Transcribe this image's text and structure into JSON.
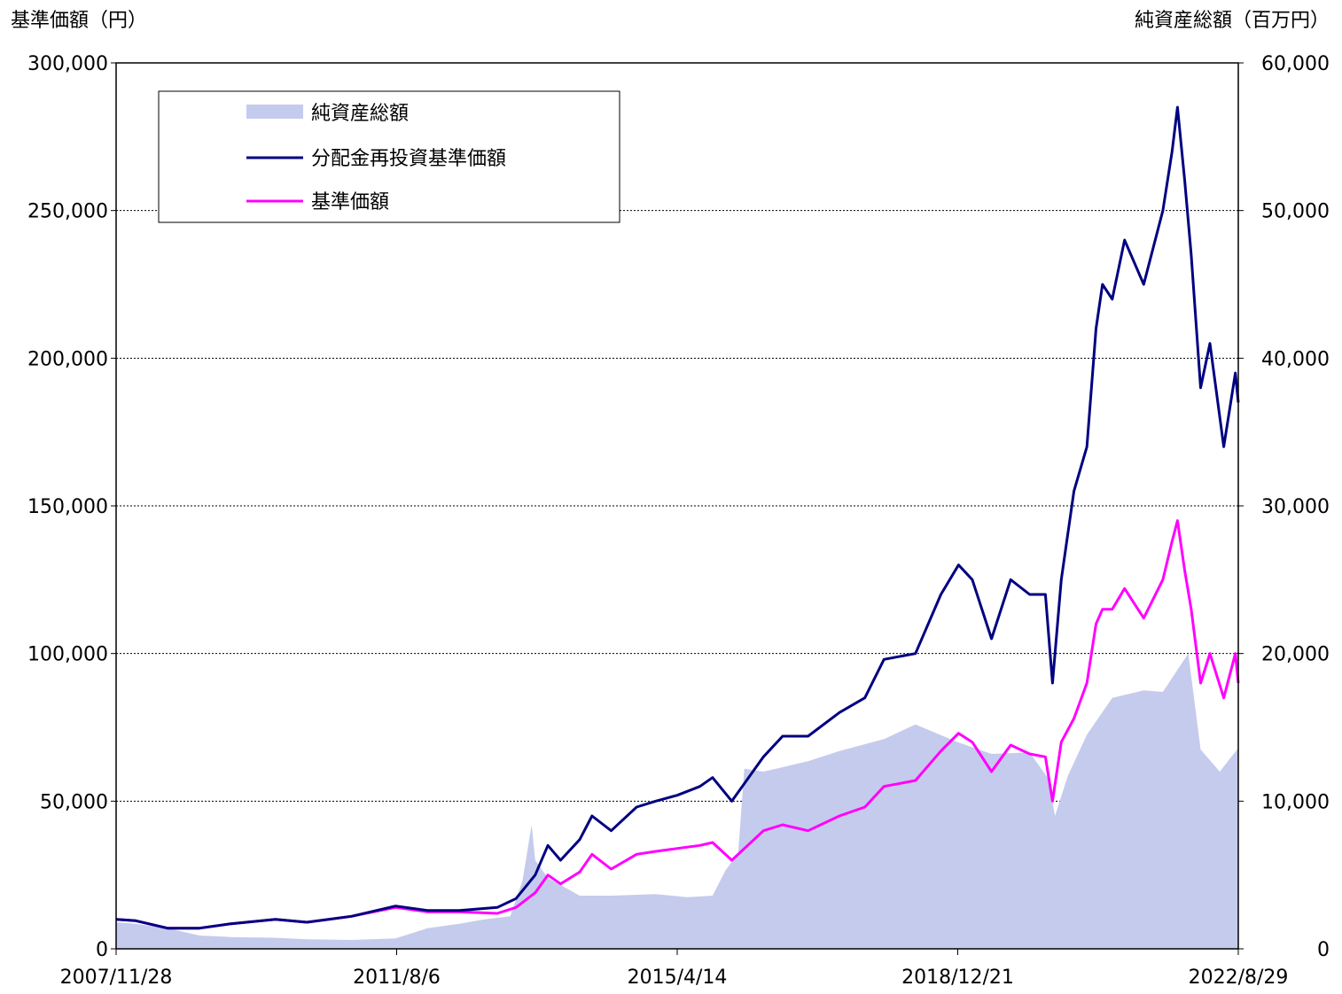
{
  "chart_data": {
    "type": "line",
    "left_axis_label": "基準価額（円）",
    "right_axis_label": "純資産総額（百万円）",
    "left_ylim": [
      0,
      300000
    ],
    "right_ylim": [
      0,
      60000
    ],
    "left_ticks": [
      0,
      50000,
      100000,
      150000,
      200000,
      250000,
      300000
    ],
    "left_tick_labels": [
      "0",
      "50,000",
      "100,000",
      "150,000",
      "200,000",
      "250,000",
      "300,000"
    ],
    "right_ticks": [
      0,
      10000,
      20000,
      30000,
      40000,
      50000,
      60000
    ],
    "right_tick_labels": [
      "0",
      "10,000",
      "20,000",
      "30,000",
      "40,000",
      "50,000",
      "60,000"
    ],
    "x_range": [
      "2007/11/28",
      "2022/8/29"
    ],
    "x_ticks": [
      "2007/11/28",
      "2011/8/6",
      "2015/4/14",
      "2018/12/21",
      "2022/8/29"
    ],
    "grid": "horizontal dashed",
    "legend_position": "top-left",
    "legend": [
      "純資産総額",
      "分配金再投資基準価額",
      "基準価額"
    ],
    "colors": {
      "net_assets": "#c5cbed",
      "reinvested_nav": "#000080",
      "nav": "#ff00ff"
    },
    "series": [
      {
        "name": "純資産総額",
        "axis": "right",
        "style": "area",
        "x": [
          "2007/11/28",
          "2008/3/1",
          "2008/8/1",
          "2009/1/1",
          "2009/6/1",
          "2010/1/1",
          "2010/6/1",
          "2011/1/1",
          "2011/8/1",
          "2012/1/1",
          "2012/6/1",
          "2012/10/1",
          "2013/2/1",
          "2013/4/1",
          "2013/5/15",
          "2013/6/1",
          "2013/8/1",
          "2014/1/1",
          "2014/6/1",
          "2015/1/1",
          "2015/6/1",
          "2015/10/1",
          "2015/12/1",
          "2016/2/1",
          "2016/3/1",
          "2016/6/1",
          "2017/1/1",
          "2017/6/1",
          "2018/1/1",
          "2018/6/1",
          "2018/12/21",
          "2019/6/1",
          "2019/12/1",
          "2020/3/1",
          "2020/4/1",
          "2020/6/1",
          "2020/9/1",
          "2021/1/1",
          "2021/6/1",
          "2021/9/1",
          "2021/11/15",
          "2022/1/1",
          "2022/3/1",
          "2022/6/1",
          "2022/8/29"
        ],
        "values": [
          1800,
          1700,
          1400,
          900,
          800,
          750,
          650,
          600,
          700,
          1400,
          1700,
          2000,
          2200,
          4600,
          8400,
          6000,
          4800,
          3600,
          3600,
          3700,
          3500,
          3600,
          5300,
          6500,
          12200,
          12000,
          12700,
          13400,
          14200,
          15200,
          14000,
          13200,
          13300,
          11500,
          9000,
          11700,
          14500,
          17000,
          17500,
          17400,
          19000,
          20000,
          13500,
          12000,
          13600
        ]
      },
      {
        "name": "分配金再投資基準価額",
        "axis": "left",
        "style": "line",
        "x": [
          "2007/11/28",
          "2008/3/1",
          "2008/8/1",
          "2009/1/1",
          "2009/6/1",
          "2010/1/1",
          "2010/6/1",
          "2011/1/1",
          "2011/8/1",
          "2012/1/1",
          "2012/6/1",
          "2012/12/1",
          "2013/3/1",
          "2013/6/1",
          "2013/8/1",
          "2013/10/1",
          "2014/1/1",
          "2014/3/1",
          "2014/6/1",
          "2014/10/1",
          "2015/1/1",
          "2015/4/14",
          "2015/8/1",
          "2015/10/1",
          "2016/1/1",
          "2016/6/1",
          "2016/9/1",
          "2017/1/1",
          "2017/6/1",
          "2017/10/1",
          "2018/1/1",
          "2018/6/1",
          "2018/10/1",
          "2018/12/25",
          "2019/3/1",
          "2019/6/1",
          "2019/9/1",
          "2019/12/1",
          "2020/2/15",
          "2020/3/20",
          "2020/5/1",
          "2020/7/1",
          "2020/9/1",
          "2020/10/15",
          "2020/11/15",
          "2021/1/1",
          "2021/3/1",
          "2021/6/1",
          "2021/9/1",
          "2021/10/15",
          "2021/11/10",
          "2021/12/15",
          "2022/1/15",
          "2022/3/1",
          "2022/4/15",
          "2022/6/20",
          "2022/8/15",
          "2022/8/29"
        ],
        "values": [
          10000,
          9500,
          7000,
          7000,
          8500,
          10000,
          9000,
          11000,
          14500,
          13000,
          13000,
          14000,
          17000,
          25000,
          35000,
          30000,
          37000,
          45000,
          40000,
          48000,
          50000,
          52000,
          55000,
          58000,
          50000,
          65000,
          72000,
          72000,
          80000,
          85000,
          98000,
          100000,
          120000,
          130000,
          125000,
          105000,
          125000,
          120000,
          120000,
          90000,
          125000,
          155000,
          170000,
          210000,
          225000,
          220000,
          240000,
          225000,
          250000,
          270000,
          285000,
          260000,
          235000,
          190000,
          205000,
          170000,
          195000,
          185000
        ]
      },
      {
        "name": "基準価額",
        "axis": "left",
        "style": "line",
        "x": [
          "2007/11/28",
          "2008/3/1",
          "2008/8/1",
          "2009/1/1",
          "2009/6/1",
          "2010/1/1",
          "2010/6/1",
          "2011/1/1",
          "2011/8/1",
          "2012/1/1",
          "2012/6/1",
          "2012/12/1",
          "2013/3/1",
          "2013/6/1",
          "2013/8/1",
          "2013/10/1",
          "2014/1/1",
          "2014/3/1",
          "2014/6/1",
          "2014/10/1",
          "2015/1/1",
          "2015/4/14",
          "2015/8/1",
          "2015/10/1",
          "2016/1/1",
          "2016/6/1",
          "2016/9/1",
          "2017/1/1",
          "2017/6/1",
          "2017/10/1",
          "2018/1/1",
          "2018/6/1",
          "2018/10/1",
          "2018/12/25",
          "2019/3/1",
          "2019/6/1",
          "2019/9/1",
          "2019/12/1",
          "2020/2/15",
          "2020/3/20",
          "2020/5/1",
          "2020/7/1",
          "2020/9/1",
          "2020/10/15",
          "2020/11/15",
          "2021/1/1",
          "2021/3/1",
          "2021/6/1",
          "2021/9/1",
          "2021/10/15",
          "2021/11/10",
          "2021/12/15",
          "2022/1/15",
          "2022/3/1",
          "2022/4/15",
          "2022/6/20",
          "2022/8/15",
          "2022/8/29"
        ],
        "values": [
          10000,
          9500,
          7000,
          7000,
          8500,
          10000,
          9000,
          11000,
          14000,
          12500,
          12500,
          12000,
          14000,
          19000,
          25000,
          22000,
          26000,
          32000,
          27000,
          32000,
          33000,
          34000,
          35000,
          36000,
          30000,
          40000,
          42000,
          40000,
          45000,
          48000,
          55000,
          57000,
          67000,
          73000,
          70000,
          60000,
          69000,
          66000,
          65000,
          50000,
          70000,
          78000,
          90000,
          110000,
          115000,
          115000,
          122000,
          112000,
          125000,
          138000,
          145000,
          128000,
          115000,
          90000,
          100000,
          85000,
          100000,
          90000
        ]
      }
    ]
  }
}
